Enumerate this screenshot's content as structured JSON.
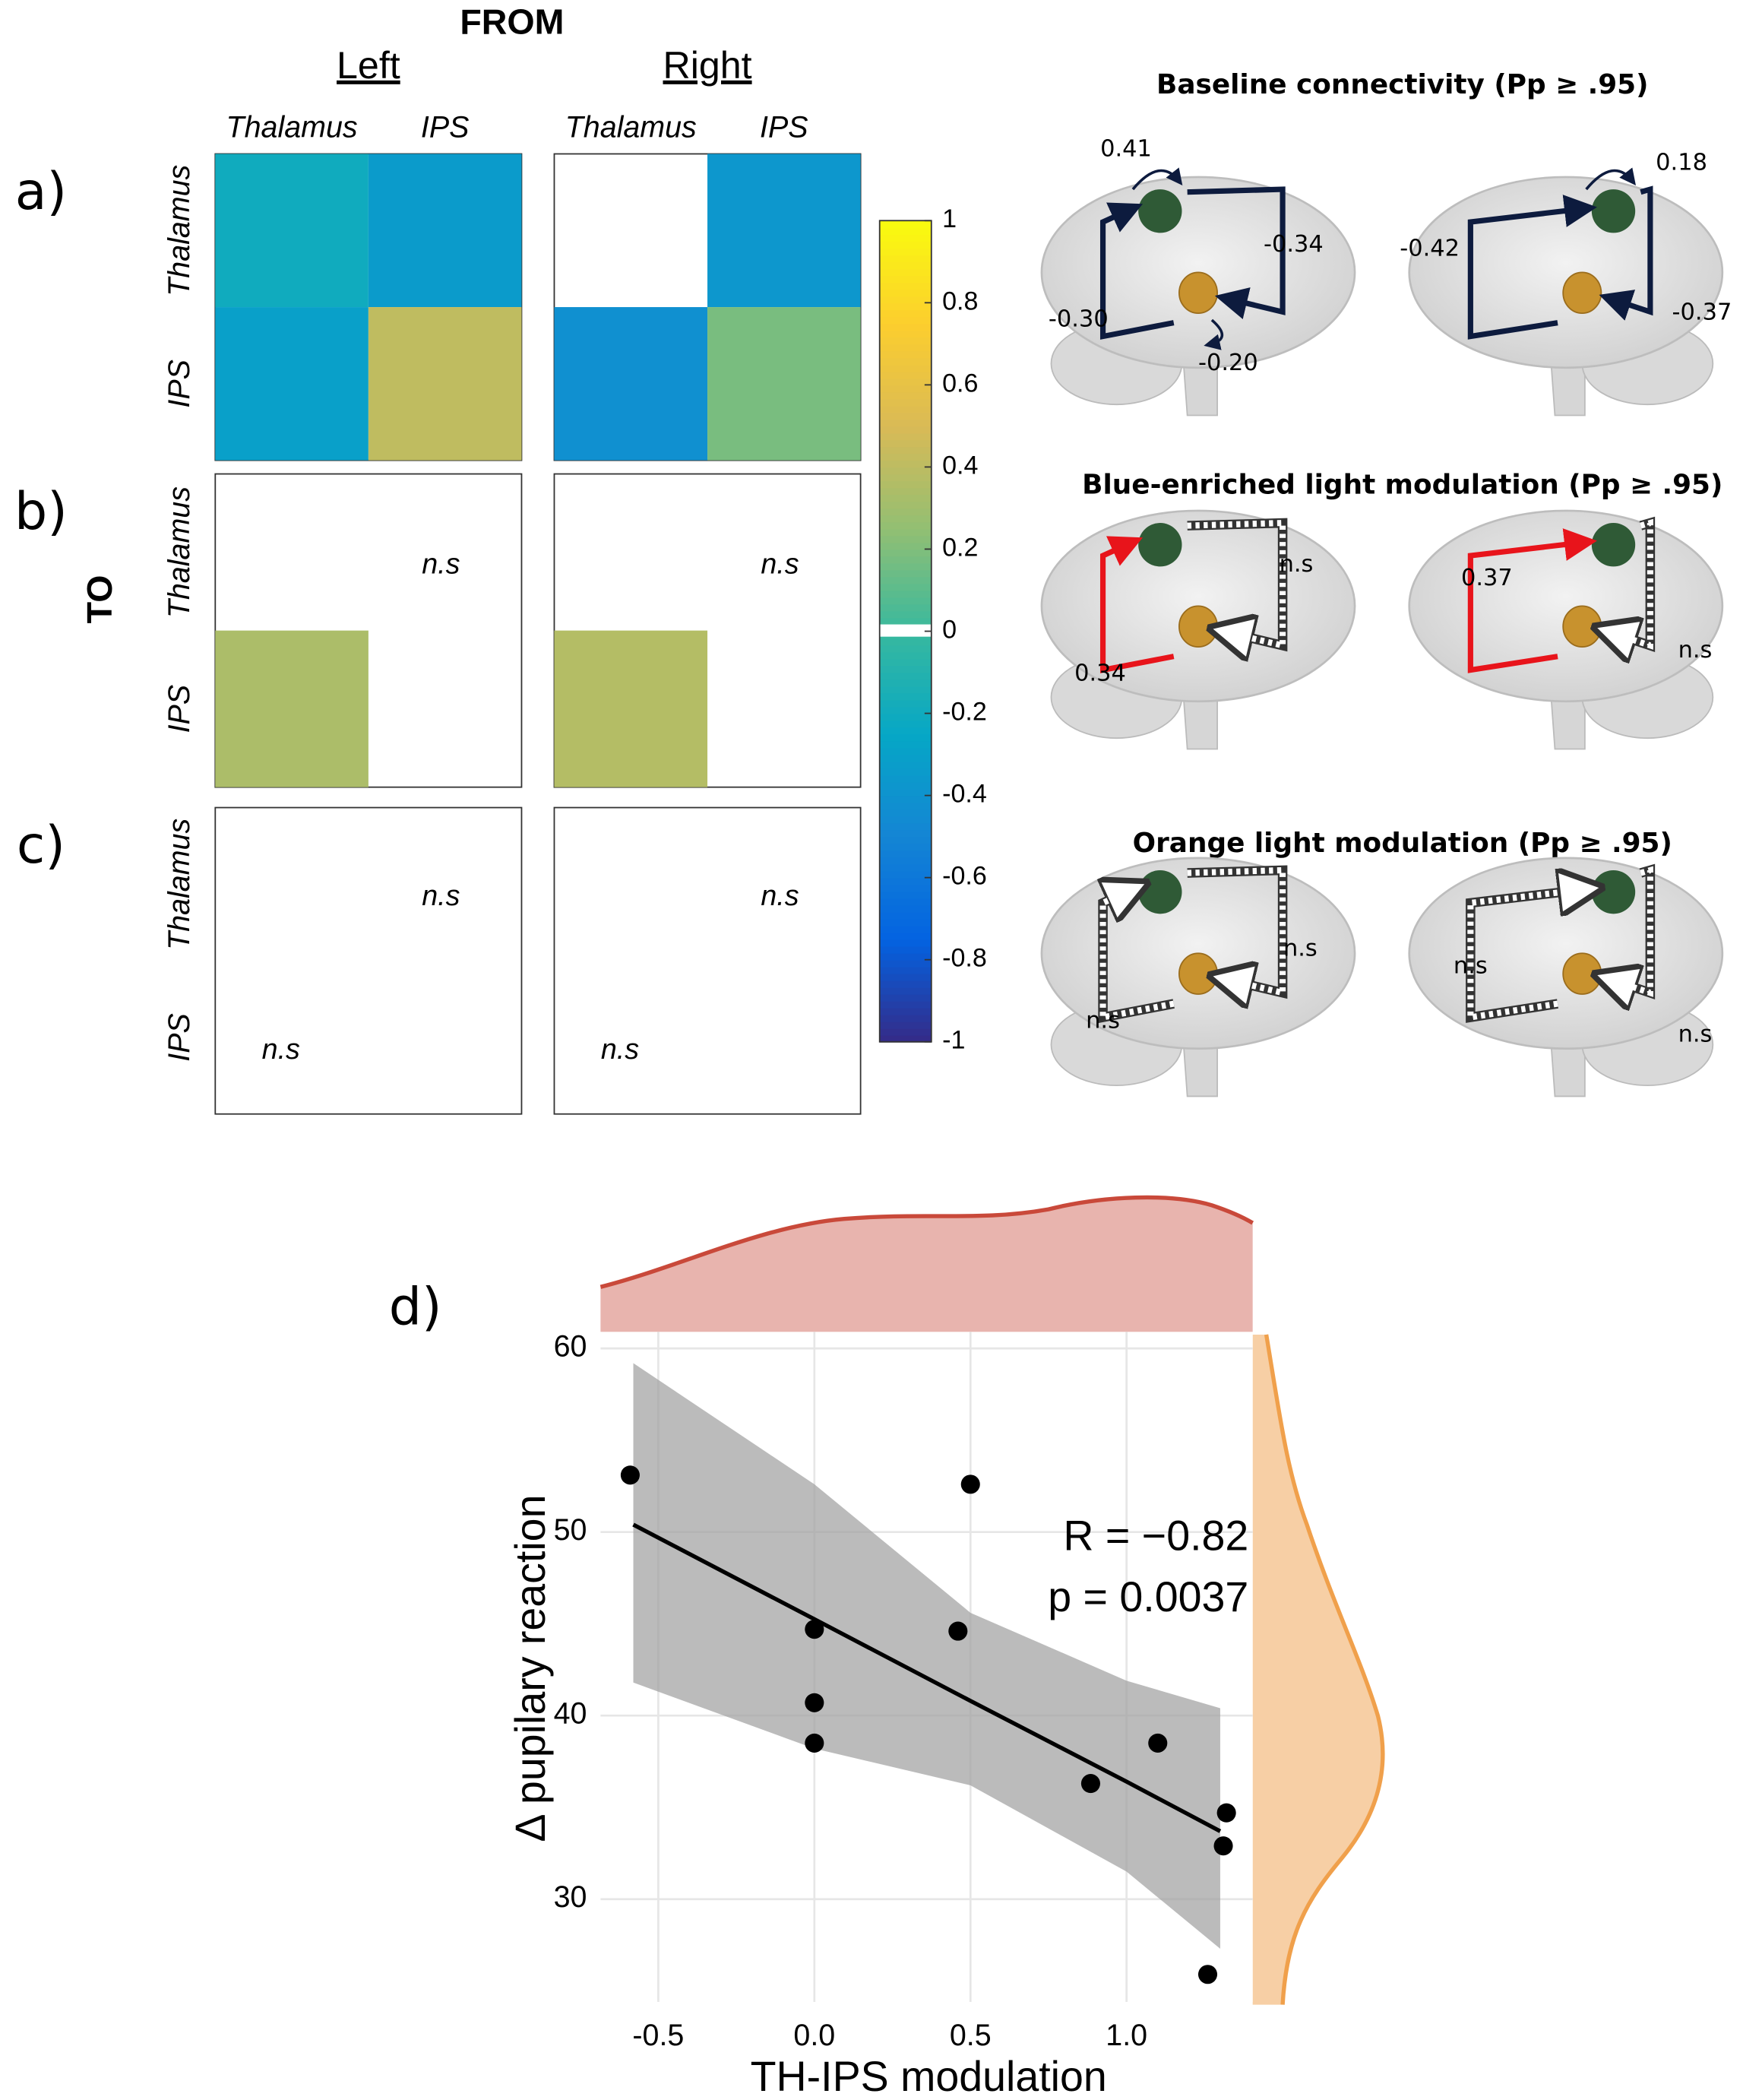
{
  "chart_data": [
    {
      "type": "heatmap",
      "x_title": "FROM",
      "y_title": "TO",
      "groups": [
        "Left",
        "Right"
      ],
      "x_categories": [
        "Thalamus",
        "IPS"
      ],
      "y_categories": [
        "Thalamus",
        "IPS"
      ],
      "panels": [
        {
          "label": "a)",
          "matrices": [
            [
              [
                -0.2,
                -0.34
              ],
              [
                -0.3,
                0.41
              ]
            ],
            [
              [
                null,
                -0.37
              ],
              [
                -0.42,
                0.18
              ]
            ]
          ],
          "cell_labels": [
            [
              [
                null,
                null
              ],
              [
                null,
                null
              ]
            ],
            [
              [
                null,
                null
              ],
              [
                null,
                null
              ]
            ]
          ]
        },
        {
          "label": "b)",
          "matrices": [
            [
              [
                null,
                null
              ],
              [
                0.34,
                null
              ]
            ],
            [
              [
                null,
                null
              ],
              [
                0.37,
                null
              ]
            ]
          ],
          "cell_labels": [
            [
              [
                null,
                "n.s"
              ],
              [
                null,
                null
              ]
            ],
            [
              [
                null,
                "n.s"
              ],
              [
                null,
                null
              ]
            ]
          ]
        },
        {
          "label": "c)",
          "matrices": [
            [
              [
                null,
                null
              ],
              [
                null,
                null
              ]
            ],
            [
              [
                null,
                null
              ],
              [
                null,
                null
              ]
            ]
          ],
          "cell_labels": [
            [
              [
                null,
                "n.s"
              ],
              [
                "n.s",
                null
              ]
            ],
            [
              [
                null,
                "n.s"
              ],
              [
                "n.s",
                null
              ]
            ]
          ]
        }
      ],
      "colormap": [
        "#352a87",
        "#0363e1",
        "#1485d4",
        "#06a7c6",
        "#38b99e",
        "#92bf73",
        "#d9ba56",
        "#fcce2e",
        "#f9fb0e"
      ],
      "clim": [
        -1,
        1
      ],
      "cticks": [
        1,
        0.8,
        0.6,
        0.4,
        0.2,
        0,
        -0.2,
        -0.4,
        -0.6,
        -0.8,
        -1
      ]
    },
    {
      "type": "scatter",
      "label": "d)",
      "x_title": "TH-IPS modulation",
      "y_title": "Δ pupilary reaction",
      "x": [
        -0.59,
        0,
        0,
        0,
        0.46,
        0.5,
        0.885,
        1.1,
        1.32,
        1.31,
        1.26
      ],
      "y": [
        53.1,
        44.7,
        40.7,
        38.5,
        44.6,
        52.6,
        36.3,
        38.5,
        34.7,
        32.9,
        25.9
      ],
      "xlim": [
        -0.685,
        1.404
      ],
      "ylim": [
        24.4,
        60.9
      ],
      "xticks": [
        -0.5,
        {
          "value": 0,
          "label": "0.0"
        },
        0.5,
        {
          "value": 1,
          "label": "1.0"
        }
      ],
      "yticks": [
        30,
        40,
        50,
        60
      ],
      "grid": true,
      "color": "#000000",
      "fit": {
        "x": [
          -0.58,
          0,
          0.5,
          1.0,
          1.3
        ],
        "y": [
          50.4,
          45.25,
          40.8,
          36.4,
          33.7
        ],
        "upper": [
          59.2,
          52.6,
          45.6,
          41.9,
          40.4
        ],
        "lower": [
          41.8,
          38.2,
          36.2,
          31.5,
          27.3
        ]
      },
      "annotations": [
        "R = −0.82",
        "p = 0.0037"
      ]
    }
  ],
  "diagrams": [
    {
      "title": "Baseline connectivity (Pp ≥ .95)",
      "brains": [
        [
          "0.41",
          "-0.34",
          "-0.30",
          "-0.20"
        ],
        [
          "0.18",
          "-0.42",
          "-0.37"
        ]
      ]
    },
    {
      "title": "Blue-enriched light modulation (Pp ≥ .95)",
      "brains": [
        [
          "n.s",
          "0.34"
        ],
        [
          "0.37",
          "n.s"
        ]
      ]
    },
    {
      "title": "Orange light modulation (Pp ≥ .95)",
      "brains": [
        [
          "n.s",
          "n.s"
        ],
        [
          "n.s",
          "n.s"
        ]
      ]
    }
  ]
}
